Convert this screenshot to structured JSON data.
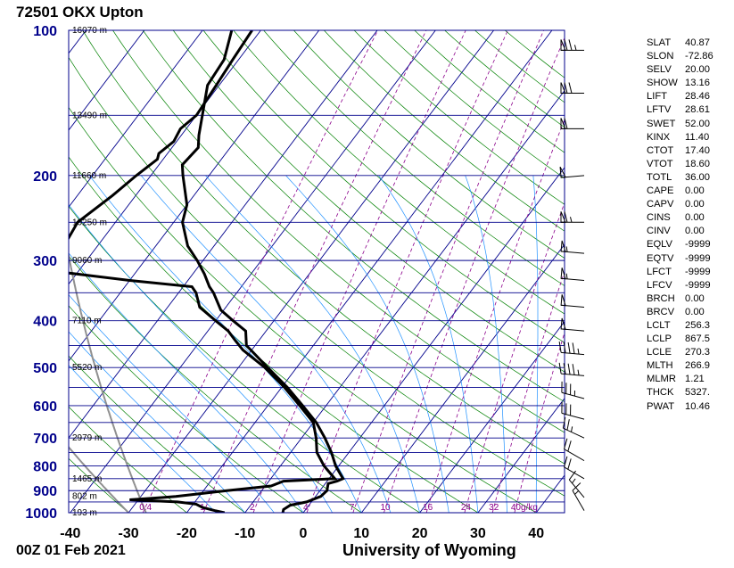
{
  "title": "72501 OKX Upton",
  "footer": {
    "time": "00Z 01 Feb 2021",
    "source": "University of Wyoming"
  },
  "indices": [
    {
      "name": "SLAT",
      "value": "40.87"
    },
    {
      "name": "SLON",
      "value": "-72.86"
    },
    {
      "name": "SELV",
      "value": "20.00"
    },
    {
      "name": "SHOW",
      "value": "13.16"
    },
    {
      "name": "LIFT",
      "value": "28.46"
    },
    {
      "name": "LFTV",
      "value": "28.61"
    },
    {
      "name": "SWET",
      "value": "52.00"
    },
    {
      "name": "KINX",
      "value": "11.40"
    },
    {
      "name": "CTOT",
      "value": "17.40"
    },
    {
      "name": "VTOT",
      "value": "18.60"
    },
    {
      "name": "TOTL",
      "value": "36.00"
    },
    {
      "name": "CAPE",
      "value": "0.00"
    },
    {
      "name": "CAPV",
      "value": "0.00"
    },
    {
      "name": "CINS",
      "value": "0.00"
    },
    {
      "name": "CINV",
      "value": "0.00"
    },
    {
      "name": "EQLV",
      "value": "-9999"
    },
    {
      "name": "EQTV",
      "value": "-9999"
    },
    {
      "name": "LFCT",
      "value": "-9999"
    },
    {
      "name": "LFCV",
      "value": "-9999"
    },
    {
      "name": "BRCH",
      "value": "0.00"
    },
    {
      "name": "BRCV",
      "value": "0.00"
    },
    {
      "name": "LCLT",
      "value": "256.3"
    },
    {
      "name": "LCLP",
      "value": "867.5"
    },
    {
      "name": "LCLE",
      "value": "270.3"
    },
    {
      "name": "MLTH",
      "value": "266.9"
    },
    {
      "name": "MLMR",
      "value": "1.21"
    },
    {
      "name": "THCK",
      "value": "5327."
    },
    {
      "name": "PWAT",
      "value": "10.46"
    }
  ],
  "chart_data": {
    "type": "line",
    "subtype": "skew-t log-p sounding",
    "x_axis": {
      "min": -40,
      "max": 45,
      "ticks": [
        -40,
        -30,
        -20,
        -10,
        0,
        10,
        20,
        30,
        40
      ],
      "unit": "°C"
    },
    "y_axis": {
      "scale": "log",
      "min": 1000,
      "max": 100,
      "ticks": [
        100,
        200,
        300,
        400,
        500,
        600,
        700,
        800,
        900,
        1000
      ],
      "unit": "hPa"
    },
    "isobars_hpa": [
      100,
      150,
      200,
      250,
      300,
      350,
      400,
      450,
      500,
      550,
      600,
      650,
      700,
      750,
      800,
      850,
      900,
      950,
      1000
    ],
    "height_labels": [
      {
        "p": 100,
        "label": "16070 m"
      },
      {
        "p": 150,
        "label": "13490 m"
      },
      {
        "p": 200,
        "label": "11660 m"
      },
      {
        "p": 250,
        "label": "10250 m"
      },
      {
        "p": 300,
        "label": "9060 m"
      },
      {
        "p": 400,
        "label": "7110 m"
      },
      {
        "p": 500,
        "label": "5520 m"
      },
      {
        "p": 700,
        "label": "2979 m"
      },
      {
        "p": 850,
        "label": "1465 m"
      },
      {
        "p": 925,
        "label": "802 m"
      },
      {
        "p": 1000,
        "label": "193 m"
      }
    ],
    "mixing_ratio_labels": [
      "0.4",
      "1",
      "2",
      "4",
      "7",
      "10",
      "16",
      "24",
      "32",
      "40g/kg"
    ],
    "series": [
      {
        "role": "temperature",
        "color": "#000000",
        "points": [
          {
            "p": 1000,
            "t": -3.5
          },
          {
            "p": 985,
            "t": -3.8
          },
          {
            "p": 965,
            "t": -3.2
          },
          {
            "p": 950,
            "t": -0.8
          },
          {
            "p": 925,
            "t": 0.9
          },
          {
            "p": 900,
            "t": 1.2
          },
          {
            "p": 870,
            "t": 0.5
          },
          {
            "p": 860,
            "t": 1.7
          },
          {
            "p": 850,
            "t": 2.4
          },
          {
            "p": 800,
            "t": -0.5
          },
          {
            "p": 750,
            "t": -3.0
          },
          {
            "p": 700,
            "t": -6.0
          },
          {
            "p": 650,
            "t": -9.5
          },
          {
            "p": 600,
            "t": -14.0
          },
          {
            "p": 550,
            "t": -19.0
          },
          {
            "p": 500,
            "t": -25.0
          },
          {
            "p": 450,
            "t": -31.5
          },
          {
            "p": 420,
            "t": -33.5
          },
          {
            "p": 400,
            "t": -37.0
          },
          {
            "p": 380,
            "t": -40.5
          },
          {
            "p": 350,
            "t": -44.0
          },
          {
            "p": 340,
            "t": -45.5
          },
          {
            "p": 320,
            "t": -48.0
          },
          {
            "p": 300,
            "t": -51.0
          },
          {
            "p": 280,
            "t": -54.5
          },
          {
            "p": 250,
            "t": -58.5
          },
          {
            "p": 230,
            "t": -60.0
          },
          {
            "p": 200,
            "t": -64.5
          },
          {
            "p": 190,
            "t": -66.0
          },
          {
            "p": 175,
            "t": -65.5
          },
          {
            "p": 165,
            "t": -67.0
          },
          {
            "p": 150,
            "t": -69.0
          },
          {
            "p": 130,
            "t": -72.0
          },
          {
            "p": 115,
            "t": -72.5
          },
          {
            "p": 100,
            "t": -75.0
          }
        ]
      },
      {
        "role": "dewpoint",
        "color": "#000000",
        "points": [
          {
            "p": 1000,
            "td": -13.5
          },
          {
            "p": 990,
            "td": -15.5
          },
          {
            "p": 975,
            "td": -18.0
          },
          {
            "p": 960,
            "td": -19.5
          },
          {
            "p": 950,
            "td": -23.0
          },
          {
            "p": 940,
            "td": -31.5
          },
          {
            "p": 930,
            "td": -26.0
          },
          {
            "p": 925,
            "td": -24.0
          },
          {
            "p": 900,
            "td": -16.0
          },
          {
            "p": 880,
            "td": -9.0
          },
          {
            "p": 860,
            "td": -7.5
          },
          {
            "p": 850,
            "td": 1.0
          },
          {
            "p": 800,
            "td": -2.5
          },
          {
            "p": 750,
            "td": -5.5
          },
          {
            "p": 700,
            "td": -7.5
          },
          {
            "p": 650,
            "td": -10.0
          },
          {
            "p": 600,
            "td": -14.5
          },
          {
            "p": 550,
            "td": -19.5
          },
          {
            "p": 500,
            "td": -25.5
          },
          {
            "p": 460,
            "td": -31.5
          },
          {
            "p": 440,
            "td": -34.0
          },
          {
            "p": 420,
            "td": -36.5
          },
          {
            "p": 400,
            "td": -40.0
          },
          {
            "p": 375,
            "td": -44.5
          },
          {
            "p": 350,
            "td": -47.0
          },
          {
            "p": 340,
            "td": -48.5
          },
          {
            "p": 330,
            "td": -60.0
          },
          {
            "p": 315,
            "td": -75.0
          },
          {
            "p": 305,
            "td": -80.0
          },
          {
            "p": 290,
            "td": -79.0
          },
          {
            "p": 270,
            "td": -76.0
          },
          {
            "p": 250,
            "td": -76.5
          },
          {
            "p": 220,
            "td": -74.0
          },
          {
            "p": 200,
            "td": -72.5
          },
          {
            "p": 185,
            "td": -71.0
          },
          {
            "p": 180,
            "td": -71.5
          },
          {
            "p": 170,
            "td": -70.5
          },
          {
            "p": 160,
            "td": -71.0
          },
          {
            "p": 150,
            "td": -70.0
          },
          {
            "p": 130,
            "td": -70.5
          },
          {
            "p": 115,
            "td": -71.0
          },
          {
            "p": 100,
            "td": -71.5
          }
        ]
      }
    ],
    "wind_barbs": [
      {
        "p": 110,
        "dir": 270,
        "spd": 75
      },
      {
        "p": 135,
        "dir": 270,
        "spd": 70
      },
      {
        "p": 160,
        "dir": 270,
        "spd": 60
      },
      {
        "p": 200,
        "dir": 265,
        "spd": 50
      },
      {
        "p": 250,
        "dir": 270,
        "spd": 65
      },
      {
        "p": 290,
        "dir": 275,
        "spd": 55
      },
      {
        "p": 330,
        "dir": 275,
        "spd": 55
      },
      {
        "p": 375,
        "dir": 275,
        "spd": 50
      },
      {
        "p": 420,
        "dir": 275,
        "spd": 50
      },
      {
        "p": 470,
        "dir": 275,
        "spd": 45
      },
      {
        "p": 520,
        "dir": 275,
        "spd": 45
      },
      {
        "p": 580,
        "dir": 285,
        "spd": 35
      },
      {
        "p": 640,
        "dir": 285,
        "spd": 30
      },
      {
        "p": 700,
        "dir": 295,
        "spd": 25
      },
      {
        "p": 780,
        "dir": 300,
        "spd": 20
      },
      {
        "p": 850,
        "dir": 300,
        "spd": 20
      },
      {
        "p": 930,
        "dir": 320,
        "spd": 15
      },
      {
        "p": 990,
        "dir": 330,
        "spd": 15
      }
    ],
    "colors": {
      "isotherm": "#00008b",
      "isobar": "#00008b",
      "dry_adiabat": "#008000",
      "moist_adiabat": "#1e90ff",
      "mixing_ratio": "#8b008b",
      "axis_label": "#00008b"
    }
  }
}
